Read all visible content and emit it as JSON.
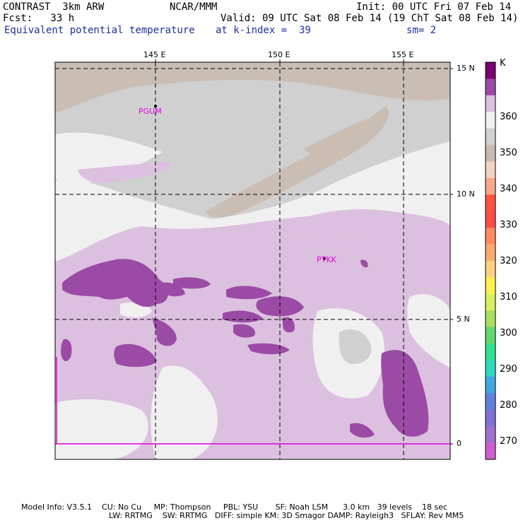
{
  "header": {
    "model": "CONTRAST  3km ARW",
    "org": "NCAR/MMM",
    "init": "Init: 00 UTC Fri 07 Feb 14",
    "fcst": "Fcst:   33 h",
    "valid": "Valid: 09 UTC Sat 08 Feb 14 (19 ChT Sat 08 Feb 14)",
    "field": "Equivalent potential temperature",
    "level": "at k-index =  39",
    "smooth": "sm= 2"
  },
  "map": {
    "lon_labels": [
      "145 E",
      "150 E",
      "155 E"
    ],
    "lat_labels": [
      "15 N",
      "10 N",
      "5 N",
      "0"
    ],
    "stations": [
      {
        "id": "PGUM",
        "lon": 145.0,
        "lat": 13.5
      },
      {
        "id": "PTKK",
        "lon": 151.8,
        "lat": 7.4
      }
    ]
  },
  "legend": {
    "unit": "K",
    "labels": [
      "360",
      "350",
      "340",
      "330",
      "320",
      "310",
      "300",
      "290",
      "280",
      "270"
    ],
    "colors": [
      "#7b0071",
      "#9b4ba5",
      "#dcc0df",
      "#f0f0f0",
      "#d0d0d0",
      "#c8bab0",
      "#f3d2bf",
      "#f8a88a",
      "#ff5540",
      "#ff4a4a",
      "#ff8a60",
      "#ffaa70",
      "#ffd080",
      "#fff050",
      "#d8f060",
      "#a8e060",
      "#60d870",
      "#30e090",
      "#30d8c0",
      "#40a8e0",
      "#6080e0",
      "#8070d8",
      "#a070d0",
      "#d060d0"
    ]
  },
  "footer": {
    "line1": "Model Info: V3.5.1    CU: No Cu     MP: Thompson     PBL: YSU       SF: Noah LSM      3.0 km   39 levels    18 sec",
    "line2": "LW: RRTMG    SW: RRTMG   DIFF: simple KM: 3D Smagor DAMP: Rayleigh3   SFLAY: Rev MM5"
  }
}
